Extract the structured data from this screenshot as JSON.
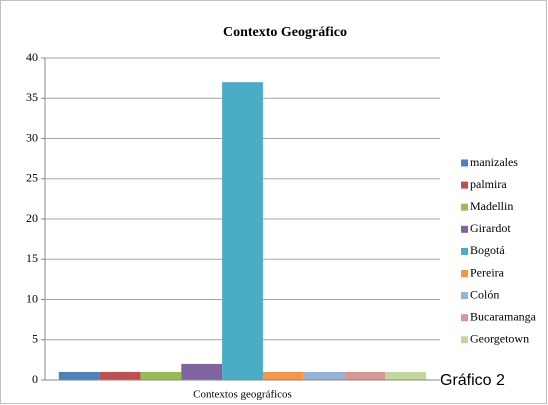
{
  "chart_data": {
    "type": "bar",
    "title": "Contexto Geográfico",
    "categories": [
      "Contextos geográficos"
    ],
    "series": [
      {
        "name": "manizales",
        "color": "#4F81BD",
        "values": [
          1
        ]
      },
      {
        "name": "palmira",
        "color": "#C0504D",
        "values": [
          1
        ]
      },
      {
        "name": "Madellin",
        "color": "#9BBB59",
        "values": [
          1
        ]
      },
      {
        "name": "Girardot",
        "color": "#8064A2",
        "values": [
          2
        ]
      },
      {
        "name": "Bogotá",
        "color": "#4BACC6",
        "values": [
          37
        ]
      },
      {
        "name": "Pereira",
        "color": "#F79646",
        "values": [
          1
        ]
      },
      {
        "name": "Colón",
        "color": "#95B3D7",
        "values": [
          1
        ]
      },
      {
        "name": "Bucaramanga",
        "color": "#D99694",
        "values": [
          1
        ]
      },
      {
        "name": "Georgetown",
        "color": "#C3D69B",
        "values": [
          1
        ]
      }
    ],
    "ylim": [
      0,
      40
    ],
    "yticks": [
      0,
      5,
      10,
      15,
      20,
      25,
      30,
      35,
      40
    ],
    "grid": true,
    "legend": "right"
  },
  "caption": "Gráfico 2"
}
